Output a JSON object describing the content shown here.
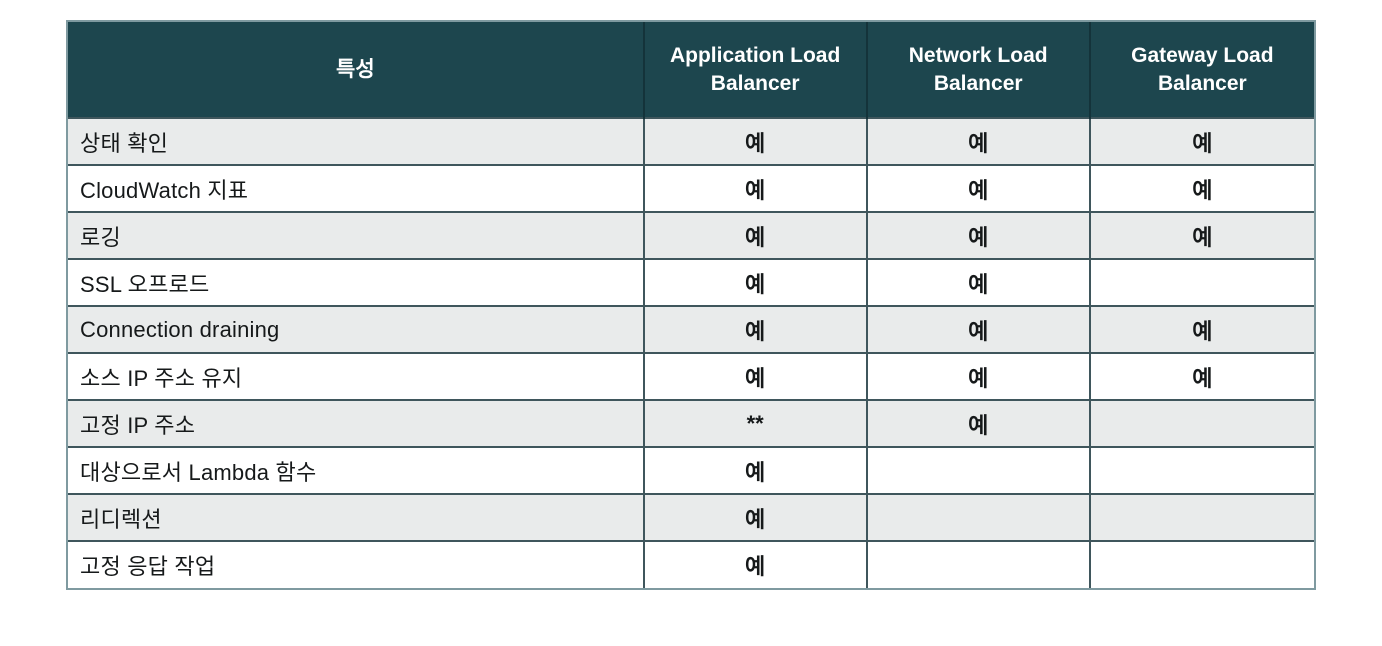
{
  "table": {
    "header": {
      "feature_label": "특성",
      "columns": [
        "Application Load Balancer",
        "Network Load Balancer",
        "Gateway Load Balancer"
      ]
    },
    "rows": [
      {
        "feature": "상태 확인",
        "cells": [
          "예",
          "예",
          "예"
        ]
      },
      {
        "feature": "CloudWatch 지표",
        "cells": [
          "예",
          "예",
          "예"
        ]
      },
      {
        "feature": "로깅",
        "cells": [
          "예",
          "예",
          "예"
        ]
      },
      {
        "feature": "SSL 오프로드",
        "cells": [
          "예",
          "예",
          ""
        ]
      },
      {
        "feature": "Connection draining",
        "cells": [
          "예",
          "예",
          "예"
        ]
      },
      {
        "feature": "소스 IP 주소 유지",
        "cells": [
          "예",
          "예",
          "예"
        ]
      },
      {
        "feature": "고정 IP 주소",
        "cells": [
          "**",
          "예",
          ""
        ]
      },
      {
        "feature": "대상으로서 Lambda 함수",
        "cells": [
          "예",
          "",
          ""
        ]
      },
      {
        "feature": "리디렉션",
        "cells": [
          "예",
          "",
          ""
        ]
      },
      {
        "feature": "고정 응답 작업",
        "cells": [
          "예",
          "",
          ""
        ]
      }
    ],
    "colors": {
      "header_bg": "#1d464e",
      "header_text": "#ffffff",
      "row_bg": "#ffffff",
      "row_alt_bg": "#e9ebeb",
      "border_outer": "#7f9aa0",
      "border_inner": "#3f565c",
      "header_divider": "#14333a",
      "cell_text": "#16191a"
    }
  }
}
